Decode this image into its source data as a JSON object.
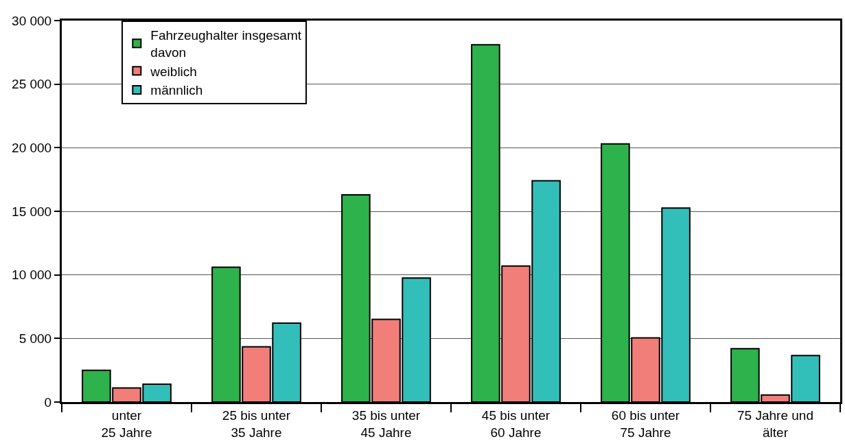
{
  "chart_data": {
    "type": "bar",
    "categories": [
      "unter\n25 Jahre",
      "25 bis unter\n35 Jahre",
      "35 bis unter\n45 Jahre",
      "45 bis unter\n60 Jahre",
      "60 bis unter\n75 Jahre",
      "75 Jahre und\nälter"
    ],
    "series": [
      {
        "name": "Fahrzeughalter insgesamt\ndavon",
        "color": "#2eb24b",
        "values": [
          2500,
          10600,
          16300,
          28100,
          20300,
          4200
        ]
      },
      {
        "name": "weiblich",
        "color": "#f17e79",
        "values": [
          1100,
          4350,
          6500,
          10700,
          5050,
          550
        ]
      },
      {
        "name": "männlich",
        "color": "#33bfb9",
        "values": [
          1400,
          6200,
          9750,
          17400,
          15250,
          3650
        ]
      }
    ],
    "ylim": [
      0,
      30000
    ],
    "yticks": [
      0,
      {
        "value": 5000,
        "label": "5 000"
      },
      {
        "value": 10000,
        "label": "10 000"
      },
      {
        "value": 15000,
        "label": "15 000"
      },
      {
        "value": 20000,
        "label": "20 000"
      },
      {
        "value": 25000,
        "label": "25 000"
      },
      {
        "value": 30000,
        "label": "30 000"
      }
    ],
    "grid": "y",
    "legend": "top left"
  }
}
